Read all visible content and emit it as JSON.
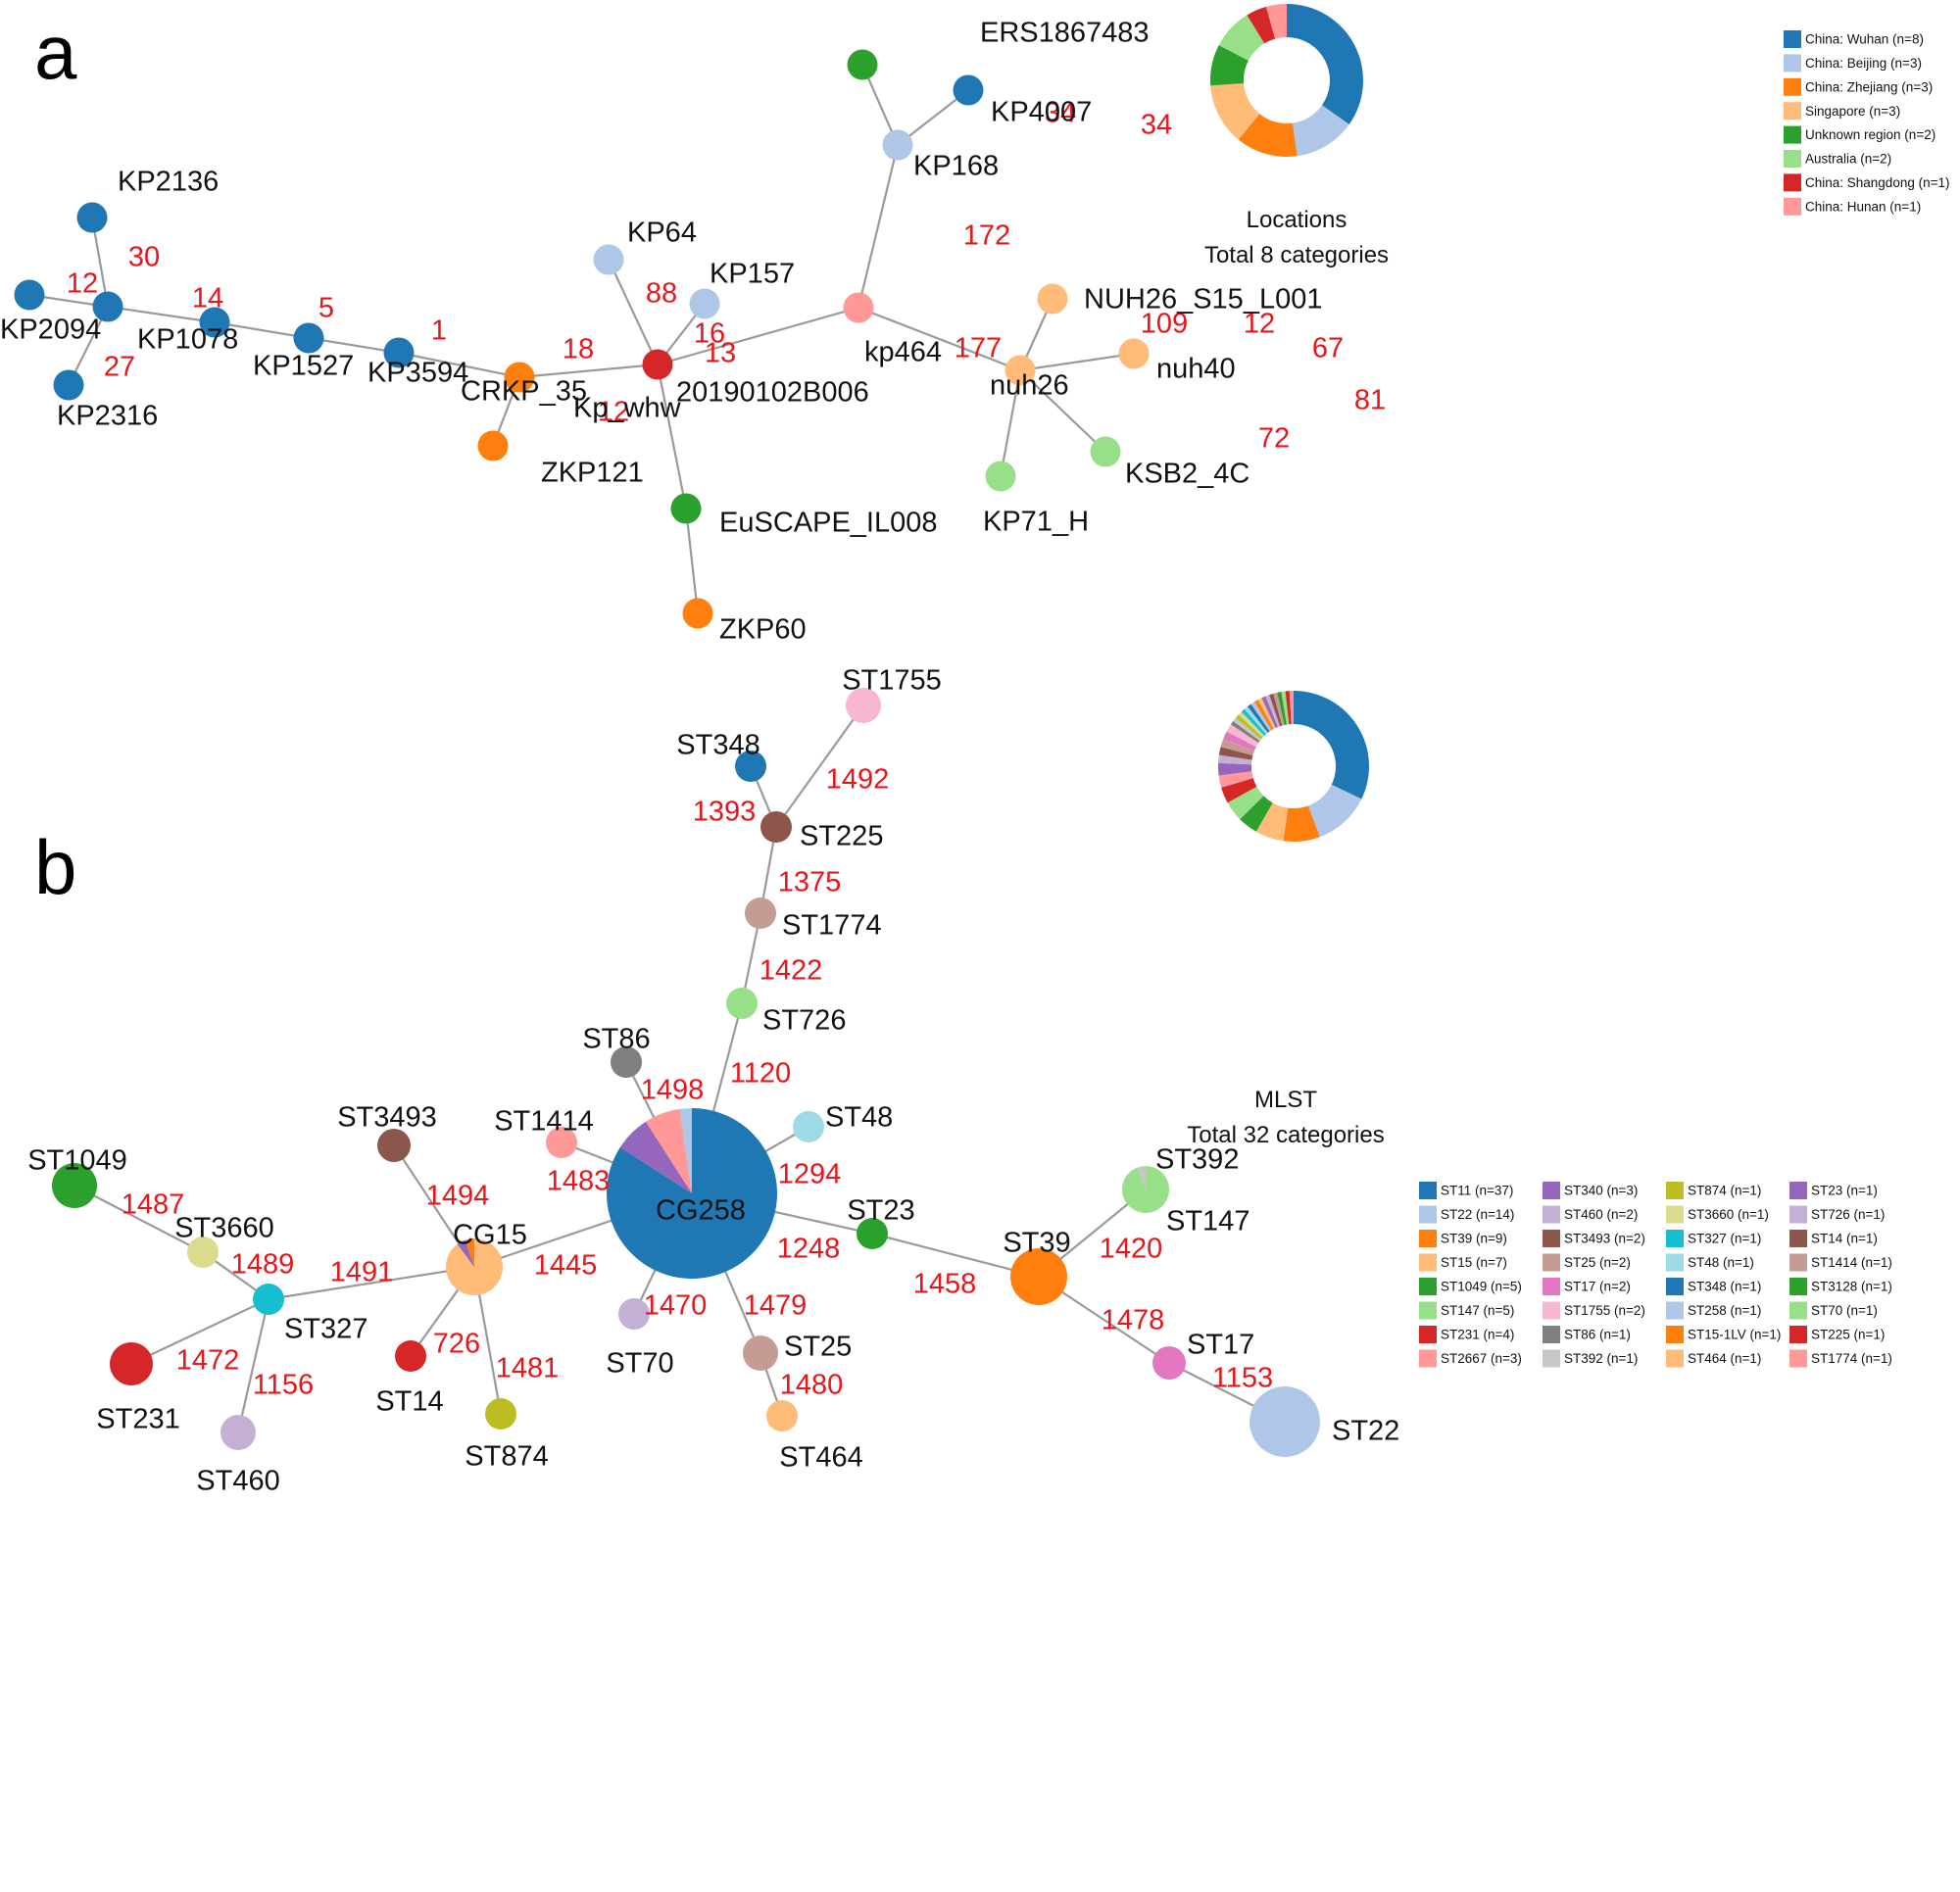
{
  "colors": {
    "edge": "#9a9a9a",
    "edge_label": "#e8161b",
    "c_blue": "#1f77b4",
    "c_lightblue": "#aec7e8",
    "c_orange": "#ff7f0e",
    "c_lightorange": "#ffbb78",
    "c_green": "#2ca02c",
    "c_lightgreen": "#98df8a",
    "c_red": "#d62728",
    "c_pink": "#ff9896",
    "c_purple": "#9467bd",
    "c_lightpurple": "#c5b0d5",
    "c_brown": "#8c564b",
    "c_tan": "#c49c94",
    "c_magenta": "#e377c2",
    "c_lightmagenta": "#f7b6d2",
    "c_gray": "#7f7f7f",
    "c_lightgray": "#c7c7c7",
    "c_olive": "#bcbd22",
    "c_khaki": "#dbdb8d",
    "c_cyan": "#17becf",
    "c_lightcyan": "#9edae5"
  },
  "panel_a": {
    "letter": "a",
    "nodes": {
      "KP2136": {
        "label": "KP2136",
        "color": "c_blue"
      },
      "KP2094": {
        "label": "KP2094",
        "color": "c_blue"
      },
      "KP1078": {
        "label": "KP1078",
        "color": "c_blue"
      },
      "KP2316": {
        "label": "KP2316",
        "color": "c_blue"
      },
      "KP1527": {
        "label": "KP1527",
        "color": "c_blue"
      },
      "KP3594": {
        "label": "KP3594",
        "color": "c_blue"
      },
      "CRKP_35": {
        "label": "CRKP_35",
        "color": "c_blue"
      },
      "Kp_whw": {
        "label": "Kp_whw",
        "color": "c_orange"
      },
      "ZKP121": {
        "label": "ZKP121",
        "color": "c_orange"
      },
      "KP64": {
        "label": "KP64",
        "color": "c_lightblue"
      },
      "KP157": {
        "label": "KP157",
        "color": "c_lightblue"
      },
      "20190102B006": {
        "label": "20190102B006",
        "color": "c_red"
      },
      "EuSCAPE_IL008": {
        "label": "EuSCAPE_IL008",
        "color": "c_green"
      },
      "ZKP60": {
        "label": "ZKP60",
        "color": "c_orange"
      },
      "kp464": {
        "label": "kp464",
        "color": "c_pink"
      },
      "KP168": {
        "label": "KP168",
        "color": "c_lightblue"
      },
      "ERS1867483": {
        "label": "ERS1867483",
        "color": "c_green"
      },
      "KP4007": {
        "label": "KP4007",
        "color": "c_blue"
      },
      "nuh26": {
        "label": "nuh26",
        "color": "c_lightorange"
      },
      "NUH26_S15_L001": {
        "label": "NUH26_S15_L001",
        "color": "c_lightorange"
      },
      "nuh40": {
        "label": "nuh40",
        "color": "c_lightorange"
      },
      "KSB2_4C": {
        "label": "KSB2_4C",
        "color": "c_lightgreen"
      },
      "KP71_H": {
        "label": "KP71_H",
        "color": "c_lightgreen"
      }
    },
    "edges": [
      {
        "from": "KP2136",
        "to": "KP1078",
        "label": "30"
      },
      {
        "from": "KP2094",
        "to": "KP1078",
        "label": "12"
      },
      {
        "from": "KP2316",
        "to": "KP1078",
        "label": "27"
      },
      {
        "from": "KP1078",
        "to": "KP1527",
        "label": "14"
      },
      {
        "from": "KP1527",
        "to": "KP3594",
        "label": "5"
      },
      {
        "from": "KP3594",
        "to": "CRKP_35",
        "label": "1"
      },
      {
        "from": "CRKP_35",
        "to": "Kp_whw",
        "label": "18"
      },
      {
        "from": "Kp_whw",
        "to": "ZKP121",
        "label": "12"
      },
      {
        "from": "Kp_whw",
        "to": "20190102B006",
        "label": "13"
      },
      {
        "from": "KP64",
        "to": "20190102B006",
        "label": "88"
      },
      {
        "from": "KP157",
        "to": "20190102B006",
        "label": "16"
      },
      {
        "from": "20190102B006",
        "to": "EuSCAPE_IL008",
        "label": ""
      },
      {
        "from": "EuSCAPE_IL008",
        "to": "ZKP60",
        "label": ""
      },
      {
        "from": "20190102B006",
        "to": "kp464",
        "label": "177"
      },
      {
        "from": "kp464",
        "to": "KP168",
        "label": "172"
      },
      {
        "from": "KP168",
        "to": "ERS1867483",
        "label": "34"
      },
      {
        "from": "KP168",
        "to": "KP4007",
        "label": "34"
      },
      {
        "from": "kp464",
        "to": "nuh26",
        "label": "109"
      },
      {
        "from": "nuh26",
        "to": "NUH26_S15_L001",
        "label": "12"
      },
      {
        "from": "nuh26",
        "to": "nuh40",
        "label": "67"
      },
      {
        "from": "nuh26",
        "to": "KSB2_4C",
        "label": "81"
      },
      {
        "from": "nuh26",
        "to": "KP71_H",
        "label": "72"
      }
    ],
    "pie": {
      "title": "Locations",
      "subtitle": "Total 8 categories",
      "slices": [
        {
          "label": "China: Wuhan (n=8)",
          "value": 8,
          "color": "c_blue"
        },
        {
          "label": "China: Beijing (n=3)",
          "value": 3,
          "color": "c_lightblue"
        },
        {
          "label": "China: Zhejiang (n=3)",
          "value": 3,
          "color": "c_orange"
        },
        {
          "label": "Singapore (n=3)",
          "value": 3,
          "color": "c_lightorange"
        },
        {
          "label": "Unknown region (n=2)",
          "value": 2,
          "color": "c_green"
        },
        {
          "label": "Australia (n=2)",
          "value": 2,
          "color": "c_lightgreen"
        },
        {
          "label": "China: Shangdong (n=1)",
          "value": 1,
          "color": "c_red"
        },
        {
          "label": "China: Hunan (n=1)",
          "value": 1,
          "color": "c_pink"
        }
      ]
    }
  },
  "panel_b": {
    "letter": "b",
    "nodes": {
      "ST1755": {
        "label": "ST1755",
        "color": "c_lightmagenta",
        "n": 2
      },
      "ST348": {
        "label": "ST348",
        "color": "c_blue",
        "n": 1
      },
      "ST225": {
        "label": "ST225",
        "color": "c_brown",
        "n": 1
      },
      "ST1774": {
        "label": "ST1774",
        "color": "c_tan",
        "n": 1
      },
      "ST726": {
        "label": "ST726",
        "color": "c_lightgreen",
        "n": 1
      },
      "ST86": {
        "label": "ST86",
        "color": "c_gray",
        "n": 1
      },
      "ST48": {
        "label": "ST48",
        "color": "c_lightcyan",
        "n": 1
      },
      "ST1414": {
        "label": "ST1414",
        "color": "c_pink",
        "n": 1
      },
      "ST3493": {
        "label": "ST3493",
        "color": "c_brown",
        "n": 2
      },
      "CG258": {
        "label": "CG258",
        "color": "c_blue",
        "n": 37
      },
      "CG15": {
        "label": "CG15",
        "color": "c_lightorange",
        "n": 7
      },
      "ST23": {
        "label": "ST23",
        "color": "c_green",
        "n": 1
      },
      "ST392": {
        "label": "ST392",
        "color": "c_lightgray",
        "n": 1
      },
      "ST147": {
        "label": "ST147",
        "color": "c_lightgreen",
        "n": 5
      },
      "ST39": {
        "label": "ST39",
        "color": "c_orange",
        "n": 9
      },
      "ST17": {
        "label": "ST17",
        "color": "c_magenta",
        "n": 2
      },
      "ST22": {
        "label": "ST22",
        "color": "c_lightblue",
        "n": 14
      },
      "ST1049": {
        "label": "ST1049",
        "color": "c_green",
        "n": 5
      },
      "ST3660": {
        "label": "ST3660",
        "color": "c_khaki",
        "n": 1
      },
      "ST327": {
        "label": "ST327",
        "color": "c_cyan",
        "n": 1
      },
      "ST231": {
        "label": "ST231",
        "color": "c_red",
        "n": 4
      },
      "ST460": {
        "label": "ST460",
        "color": "c_lightpurple",
        "n": 2
      },
      "ST14": {
        "label": "ST14",
        "color": "c_red",
        "n": 1
      },
      "ST874": {
        "label": "ST874",
        "color": "c_olive",
        "n": 1
      },
      "ST70": {
        "label": "ST70",
        "color": "c_lightpurple",
        "n": 1
      },
      "ST25": {
        "label": "ST25",
        "color": "c_tan",
        "n": 2
      },
      "ST464": {
        "label": "ST464",
        "color": "c_lightorange",
        "n": 1
      }
    },
    "edges": [
      {
        "from": "ST348",
        "to": "ST225",
        "label": "1393"
      },
      {
        "from": "ST1755",
        "to": "ST225",
        "label": "1492"
      },
      {
        "from": "ST225",
        "to": "ST1774",
        "label": "1375"
      },
      {
        "from": "ST1774",
        "to": "ST726",
        "label": "1422"
      },
      {
        "from": "ST726",
        "to": "CG258",
        "label": "1120"
      },
      {
        "from": "ST86",
        "to": "CG258",
        "label": "1498"
      },
      {
        "from": "ST48",
        "to": "CG258",
        "label": "1294"
      },
      {
        "from": "ST1414",
        "to": "CG258",
        "label": "1483"
      },
      {
        "from": "CG258",
        "to": "ST23",
        "label": "1248"
      },
      {
        "from": "ST23",
        "to": "ST39",
        "label": "1458"
      },
      {
        "from": "ST39",
        "to": "ST147",
        "label": "1420"
      },
      {
        "from": "ST39",
        "to": "ST17",
        "label": "1478"
      },
      {
        "from": "ST17",
        "to": "ST22",
        "label": "1153"
      },
      {
        "from": "CG258",
        "to": "ST70",
        "label": "1470"
      },
      {
        "from": "CG258",
        "to": "ST25",
        "label": "1479"
      },
      {
        "from": "ST25",
        "to": "ST464",
        "label": "1480"
      },
      {
        "from": "CG258",
        "to": "CG15",
        "label": "1445"
      },
      {
        "from": "ST3493",
        "to": "CG15",
        "label": "1494"
      },
      {
        "from": "CG15",
        "to": "ST14",
        "label": "726"
      },
      {
        "from": "CG15",
        "to": "ST874",
        "label": "1481"
      },
      {
        "from": "CG15",
        "to": "ST327",
        "label": "1491"
      },
      {
        "from": "ST1049",
        "to": "ST3660",
        "label": "1487"
      },
      {
        "from": "ST3660",
        "to": "ST327",
        "label": "1489"
      },
      {
        "from": "ST327",
        "to": "ST231",
        "label": "1472"
      },
      {
        "from": "ST327",
        "to": "ST460",
        "label": "1156"
      }
    ],
    "node_pies": {
      "CG258": [
        {
          "value": 37,
          "color": "c_blue"
        },
        {
          "value": 3,
          "color": "c_purple"
        },
        {
          "value": 3,
          "color": "c_pink"
        },
        {
          "value": 1,
          "color": "c_lightblue"
        }
      ],
      "CG15": [
        {
          "value": 7,
          "color": "c_lightorange"
        },
        {
          "value": 0.4,
          "color": "c_purple"
        },
        {
          "value": 0.4,
          "color": "c_orange"
        }
      ],
      "ST147": [
        {
          "value": 5,
          "color": "c_lightgreen"
        },
        {
          "value": 0.3,
          "color": "c_lightgray"
        }
      ]
    },
    "pie": {
      "title": "MLST",
      "subtitle": "Total 32 categories",
      "slices": [
        {
          "label": "ST11 (n=37)",
          "value": 37,
          "color": "c_blue"
        },
        {
          "label": "ST22 (n=14)",
          "value": 14,
          "color": "c_lightblue"
        },
        {
          "label": "ST39 (n=9)",
          "value": 9,
          "color": "c_orange"
        },
        {
          "label": "ST15 (n=7)",
          "value": 7,
          "color": "c_lightorange"
        },
        {
          "label": "ST1049 (n=5)",
          "value": 5,
          "color": "c_green"
        },
        {
          "label": "ST147 (n=5)",
          "value": 5,
          "color": "c_lightgreen"
        },
        {
          "label": "ST231 (n=4)",
          "value": 4,
          "color": "c_red"
        },
        {
          "label": "ST2667 (n=3)",
          "value": 3,
          "color": "c_pink"
        },
        {
          "label": "ST340 (n=3)",
          "value": 3,
          "color": "c_purple"
        },
        {
          "label": "ST460 (n=2)",
          "value": 2,
          "color": "c_lightpurple"
        },
        {
          "label": "ST3493 (n=2)",
          "value": 2,
          "color": "c_brown"
        },
        {
          "label": "ST25 (n=2)",
          "value": 2,
          "color": "c_tan"
        },
        {
          "label": "ST17 (n=2)",
          "value": 2,
          "color": "c_magenta"
        },
        {
          "label": "ST1755 (n=2)",
          "value": 2,
          "color": "c_lightmagenta"
        },
        {
          "label": "ST86 (n=1)",
          "value": 1,
          "color": "c_gray"
        },
        {
          "label": "ST392 (n=1)",
          "value": 1,
          "color": "c_lightgray"
        },
        {
          "label": "ST874 (n=1)",
          "value": 1,
          "color": "c_olive"
        },
        {
          "label": "ST3660 (n=1)",
          "value": 1,
          "color": "c_khaki"
        },
        {
          "label": "ST327 (n=1)",
          "value": 1,
          "color": "c_cyan"
        },
        {
          "label": "ST48 (n=1)",
          "value": 1,
          "color": "c_lightcyan"
        },
        {
          "label": "ST348 (n=1)",
          "value": 1,
          "color": "c_blue"
        },
        {
          "label": "ST258 (n=1)",
          "value": 1,
          "color": "c_lightblue"
        },
        {
          "label": "ST15-1LV (n=1)",
          "value": 1,
          "color": "c_orange"
        },
        {
          "label": "ST464 (n=1)",
          "value": 1,
          "color": "c_lightorange"
        },
        {
          "label": "ST23 (n=1)",
          "value": 1,
          "color": "c_purple"
        },
        {
          "label": "ST726 (n=1)",
          "value": 1,
          "color": "c_lightpurple"
        },
        {
          "label": "ST14 (n=1)",
          "value": 1,
          "color": "c_brown"
        },
        {
          "label": "ST1414 (n=1)",
          "value": 1,
          "color": "c_tan"
        },
        {
          "label": "ST3128 (n=1)",
          "value": 1,
          "color": "c_green"
        },
        {
          "label": "ST70 (n=1)",
          "value": 1,
          "color": "c_lightgreen"
        },
        {
          "label": "ST225 (n=1)",
          "value": 1,
          "color": "c_red"
        },
        {
          "label": "ST1774 (n=1)",
          "value": 1,
          "color": "c_pink"
        }
      ]
    }
  }
}
